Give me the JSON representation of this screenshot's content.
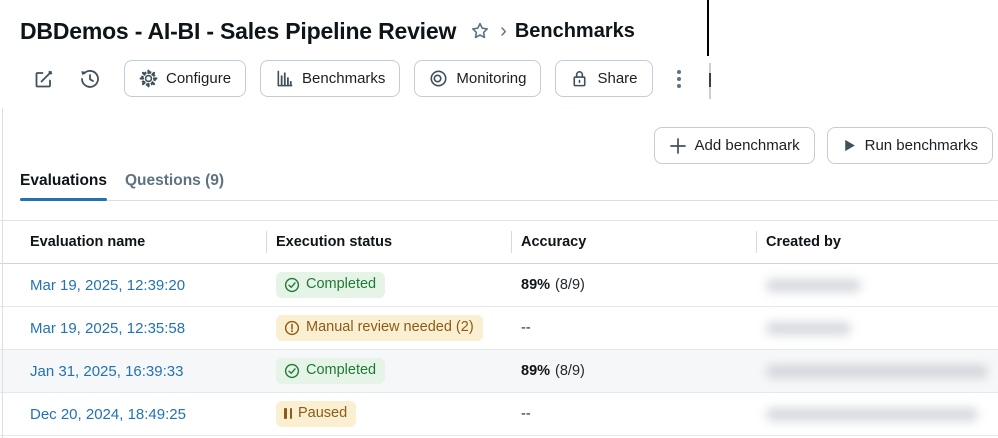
{
  "header": {
    "title": "DBDemos - AI-BI - Sales Pipeline Review",
    "breadcrumb_separator": "›",
    "breadcrumb_current": "Benchmarks"
  },
  "toolbar": {
    "edit_icon": "edit-pencil-square",
    "history_icon": "version-history-clock",
    "configure_label": "Configure",
    "benchmarks_label": "Benchmarks",
    "monitoring_label": "Monitoring",
    "share_label": "Share",
    "overflow_icon": "kebab-menu"
  },
  "actions": {
    "add_benchmark_label": "Add benchmark",
    "run_benchmarks_label": "Run benchmarks"
  },
  "tabs": [
    {
      "label": "Evaluations",
      "active": true
    },
    {
      "label": "Questions (9)",
      "active": false
    }
  ],
  "table": {
    "columns": [
      "Evaluation name",
      "Execution status",
      "Accuracy",
      "Created by"
    ],
    "rows": [
      {
        "name": "Mar 19, 2025, 12:39:20",
        "status": "Completed",
        "status_type": "success",
        "accuracy_value": "89%",
        "accuracy_detail": "(8/9)",
        "created_by_redacted_width": 95
      },
      {
        "name": "Mar 19, 2025, 12:35:58",
        "status": "Manual review needed (2)",
        "status_type": "warning",
        "accuracy_value": "",
        "accuracy_detail": "--",
        "created_by_redacted_width": 85
      },
      {
        "name": "Jan 31, 2025, 16:39:33",
        "status": "Completed",
        "status_type": "success",
        "accuracy_value": "89%",
        "accuracy_detail": "(8/9)",
        "created_by_redacted_width": 222,
        "highlighted": true
      },
      {
        "name": "Dec 20, 2024, 18:49:25",
        "status": "Paused",
        "status_type": "paused",
        "accuracy_value": "",
        "accuracy_detail": "--",
        "created_by_redacted_width": 212
      }
    ]
  },
  "colors": {
    "accent_blue": "#2272B4",
    "link_blue": "#2272B4",
    "success_bg": "#E5F4E7",
    "success_text": "#1F7A35",
    "warning_bg": "#FBEFD1",
    "warning_text": "#8A5C17",
    "icon_slate": "#5F7281",
    "tab_inactive": "#5F7281",
    "row_highlight": "#F6F7F8"
  }
}
